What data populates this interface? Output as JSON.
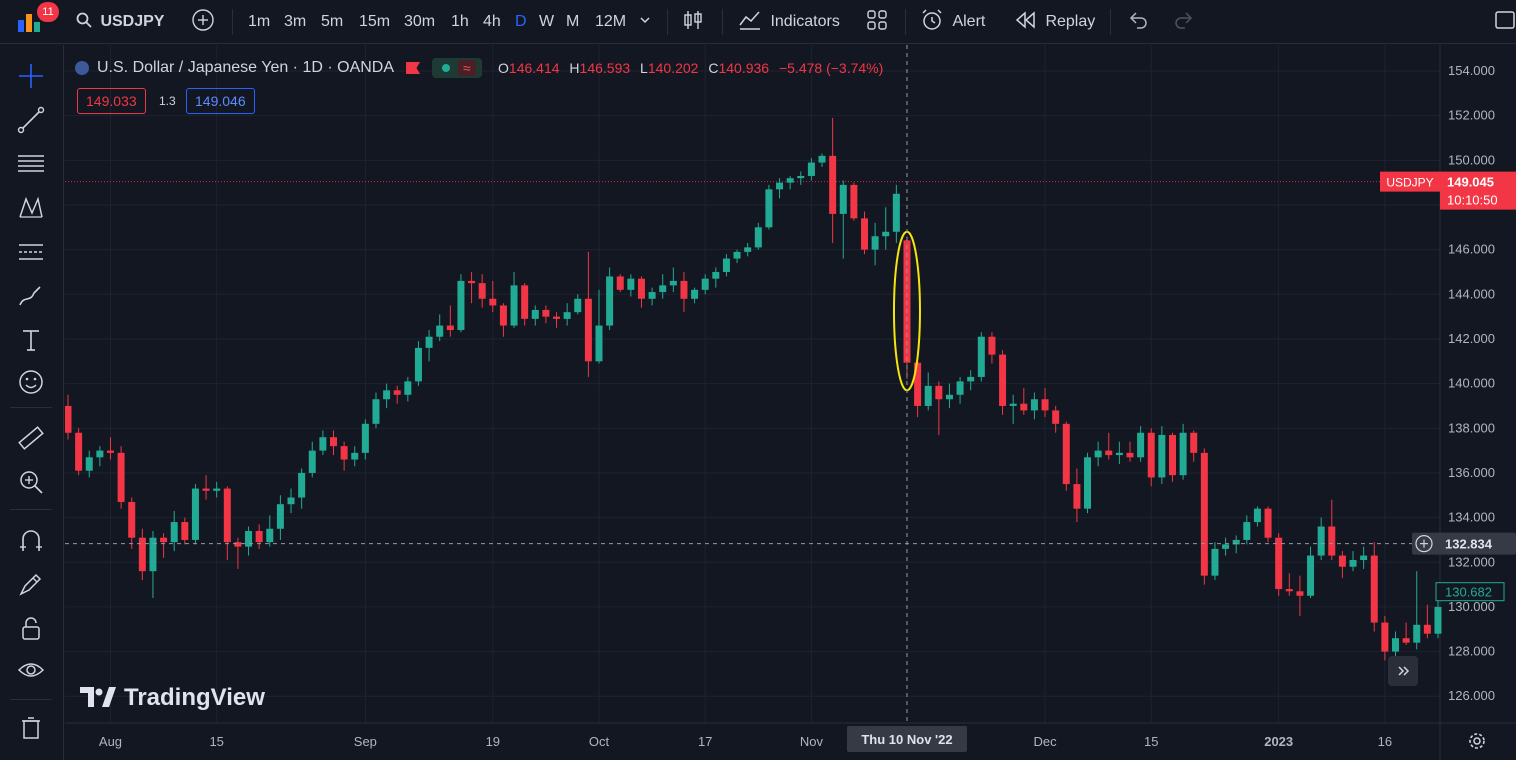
{
  "toolbar": {
    "notification_count": "11",
    "symbol": "USDJPY",
    "intervals": [
      "1m",
      "3m",
      "5m",
      "15m",
      "30m",
      "1h",
      "4h",
      "D",
      "W",
      "M",
      "12M"
    ],
    "active_interval": "D",
    "indicators_label": "Indicators",
    "alert_label": "Alert",
    "replay_label": "Replay",
    "icons": [
      "search-icon",
      "add-symbol-icon",
      "chevron-down-icon",
      "candles-icon",
      "indicators-icon",
      "templates-icon",
      "alert-icon",
      "replay-icon",
      "undo-icon",
      "redo-icon",
      "layout-icon"
    ]
  },
  "left_tools": [
    "crosshair-icon",
    "trend-line-icon",
    "fib-icon",
    "patterns-icon",
    "prediction-icon",
    "brush-icon",
    "text-icon",
    "emoji-icon",
    "ruler-icon",
    "zoom-in-icon",
    "magnet-icon",
    "lock-drawings-icon",
    "unlock-icon",
    "eye-icon",
    "trash-icon"
  ],
  "legend": {
    "title": "U.S. Dollar / Japanese Yen · 1D · OANDA",
    "wave": "≈",
    "o_label": "O",
    "o": "146.414",
    "h_label": "H",
    "h": "146.593",
    "l_label": "L",
    "l": "140.202",
    "c_label": "C",
    "c": "140.936",
    "change": "−5.478 (−3.74%)"
  },
  "quote": {
    "sell": "149.033",
    "spread": "1.3",
    "buy": "149.046"
  },
  "price_labels": {
    "symbol_tag": "USDJPY",
    "last_price": "149.045",
    "countdown": "10:10:50",
    "crosshair_price": "132.834",
    "low_marker": "130.682"
  },
  "watermark": "TradingView",
  "colors": {
    "up": "#22ab94",
    "down": "#f23645",
    "background": "#131722",
    "highlight": "#f5e50a"
  },
  "chart_data": {
    "type": "candlestick",
    "symbol": "USDJPY",
    "title": "U.S. Dollar / Japanese Yen · 1D · OANDA",
    "y_range": [
      125,
      155
    ],
    "y_ticks": [
      126,
      128,
      130,
      132,
      134,
      136,
      138,
      140,
      142,
      144,
      146,
      148,
      150,
      152,
      154
    ],
    "y_tick_labels": [
      "126.000",
      "128.000",
      "130.000",
      "132.000",
      "134.000",
      "136.000",
      "138.000",
      "140.000",
      "142.000",
      "144.000",
      "146.000",
      "148.000",
      "150.000",
      "152.000",
      "154.000"
    ],
    "x_labels": [
      {
        "label": "Aug",
        "index": 4
      },
      {
        "label": "15",
        "index": 14
      },
      {
        "label": "Sep",
        "index": 28
      },
      {
        "label": "19",
        "index": 40
      },
      {
        "label": "Oct",
        "index": 50
      },
      {
        "label": "17",
        "index": 60
      },
      {
        "label": "Nov",
        "index": 70
      },
      {
        "label": "Dec",
        "index": 92
      },
      {
        "label": "15",
        "index": 102
      },
      {
        "label": "2023",
        "index": 114
      },
      {
        "label": "16",
        "index": 124
      }
    ],
    "crosshair": {
      "index": 79,
      "date_label": "Thu 10 Nov '22",
      "price": 132.834
    },
    "last_price": 149.045,
    "annotation": {
      "type": "ellipse",
      "index": 79,
      "y_top": 146.8,
      "y_bottom": 139.7
    },
    "candles": [
      {
        "o": 139.0,
        "h": 139.5,
        "l": 137.5,
        "c": 137.8
      },
      {
        "o": 137.8,
        "h": 138.0,
        "l": 135.9,
        "c": 136.1
      },
      {
        "o": 136.1,
        "h": 137.0,
        "l": 135.8,
        "c": 136.7
      },
      {
        "o": 136.7,
        "h": 137.2,
        "l": 136.3,
        "c": 137.0
      },
      {
        "o": 137.0,
        "h": 137.6,
        "l": 136.6,
        "c": 136.9
      },
      {
        "o": 136.9,
        "h": 137.2,
        "l": 134.4,
        "c": 134.7
      },
      {
        "o": 134.7,
        "h": 134.9,
        "l": 132.6,
        "c": 133.1
      },
      {
        "o": 133.1,
        "h": 133.5,
        "l": 131.2,
        "c": 131.6
      },
      {
        "o": 131.6,
        "h": 133.4,
        "l": 130.4,
        "c": 133.1
      },
      {
        "o": 133.1,
        "h": 133.3,
        "l": 132.2,
        "c": 132.9
      },
      {
        "o": 132.9,
        "h": 134.3,
        "l": 132.5,
        "c": 133.8
      },
      {
        "o": 133.8,
        "h": 134.0,
        "l": 132.8,
        "c": 133.0
      },
      {
        "o": 133.0,
        "h": 135.5,
        "l": 132.8,
        "c": 135.3
      },
      {
        "o": 135.3,
        "h": 135.9,
        "l": 134.8,
        "c": 135.2
      },
      {
        "o": 135.2,
        "h": 135.6,
        "l": 134.9,
        "c": 135.3
      },
      {
        "o": 135.3,
        "h": 135.4,
        "l": 132.1,
        "c": 132.9
      },
      {
        "o": 132.9,
        "h": 133.1,
        "l": 131.7,
        "c": 132.7
      },
      {
        "o": 132.7,
        "h": 133.6,
        "l": 132.3,
        "c": 133.4
      },
      {
        "o": 133.4,
        "h": 133.7,
        "l": 132.6,
        "c": 132.9
      },
      {
        "o": 132.9,
        "h": 134.1,
        "l": 132.7,
        "c": 133.5
      },
      {
        "o": 133.5,
        "h": 135.0,
        "l": 133.0,
        "c": 134.6
      },
      {
        "o": 134.6,
        "h": 135.3,
        "l": 134.2,
        "c": 134.9
      },
      {
        "o": 134.9,
        "h": 136.2,
        "l": 134.4,
        "c": 136.0
      },
      {
        "o": 136.0,
        "h": 137.4,
        "l": 135.8,
        "c": 137.0
      },
      {
        "o": 137.0,
        "h": 137.9,
        "l": 136.8,
        "c": 137.6
      },
      {
        "o": 137.6,
        "h": 137.9,
        "l": 136.8,
        "c": 137.2
      },
      {
        "o": 137.2,
        "h": 137.4,
        "l": 136.1,
        "c": 136.6
      },
      {
        "o": 136.6,
        "h": 137.2,
        "l": 136.3,
        "c": 136.9
      },
      {
        "o": 136.9,
        "h": 138.4,
        "l": 136.6,
        "c": 138.2
      },
      {
        "o": 138.2,
        "h": 139.6,
        "l": 138.0,
        "c": 139.3
      },
      {
        "o": 139.3,
        "h": 140.0,
        "l": 138.9,
        "c": 139.7
      },
      {
        "o": 139.7,
        "h": 139.9,
        "l": 139.1,
        "c": 139.5
      },
      {
        "o": 139.5,
        "h": 140.3,
        "l": 139.2,
        "c": 140.1
      },
      {
        "o": 140.1,
        "h": 141.9,
        "l": 139.9,
        "c": 141.6
      },
      {
        "o": 141.6,
        "h": 142.4,
        "l": 141.0,
        "c": 142.1
      },
      {
        "o": 142.1,
        "h": 143.1,
        "l": 141.9,
        "c": 142.6
      },
      {
        "o": 142.6,
        "h": 143.5,
        "l": 142.1,
        "c": 142.4
      },
      {
        "o": 142.4,
        "h": 144.9,
        "l": 142.3,
        "c": 144.6
      },
      {
        "o": 144.6,
        "h": 145.0,
        "l": 143.6,
        "c": 144.5
      },
      {
        "o": 144.5,
        "h": 144.9,
        "l": 143.4,
        "c": 143.8
      },
      {
        "o": 143.8,
        "h": 144.6,
        "l": 143.2,
        "c": 143.5
      },
      {
        "o": 143.5,
        "h": 143.6,
        "l": 142.1,
        "c": 142.6
      },
      {
        "o": 142.6,
        "h": 145.0,
        "l": 142.5,
        "c": 144.4
      },
      {
        "o": 144.4,
        "h": 144.5,
        "l": 142.6,
        "c": 142.9
      },
      {
        "o": 142.9,
        "h": 143.5,
        "l": 142.6,
        "c": 143.3
      },
      {
        "o": 143.3,
        "h": 143.5,
        "l": 142.7,
        "c": 143.0
      },
      {
        "o": 143.0,
        "h": 143.2,
        "l": 142.5,
        "c": 142.9
      },
      {
        "o": 142.9,
        "h": 143.6,
        "l": 142.6,
        "c": 143.2
      },
      {
        "o": 143.2,
        "h": 144.0,
        "l": 143.1,
        "c": 143.8
      },
      {
        "o": 143.8,
        "h": 145.9,
        "l": 140.3,
        "c": 141.0
      },
      {
        "o": 141.0,
        "h": 144.2,
        "l": 140.9,
        "c": 142.6
      },
      {
        "o": 142.6,
        "h": 145.2,
        "l": 142.4,
        "c": 144.8
      },
      {
        "o": 144.8,
        "h": 144.9,
        "l": 144.1,
        "c": 144.2
      },
      {
        "o": 144.2,
        "h": 144.9,
        "l": 143.9,
        "c": 144.7
      },
      {
        "o": 144.7,
        "h": 144.8,
        "l": 143.4,
        "c": 143.8
      },
      {
        "o": 143.8,
        "h": 144.3,
        "l": 143.5,
        "c": 144.1
      },
      {
        "o": 144.1,
        "h": 144.9,
        "l": 143.8,
        "c": 144.4
      },
      {
        "o": 144.4,
        "h": 145.2,
        "l": 144.1,
        "c": 144.6
      },
      {
        "o": 144.6,
        "h": 145.0,
        "l": 143.2,
        "c": 143.8
      },
      {
        "o": 143.8,
        "h": 144.3,
        "l": 143.6,
        "c": 144.2
      },
      {
        "o": 144.2,
        "h": 144.9,
        "l": 144.0,
        "c": 144.7
      },
      {
        "o": 144.7,
        "h": 145.2,
        "l": 144.3,
        "c": 145.0
      },
      {
        "o": 145.0,
        "h": 145.8,
        "l": 144.8,
        "c": 145.6
      },
      {
        "o": 145.6,
        "h": 146.0,
        "l": 145.4,
        "c": 145.9
      },
      {
        "o": 145.9,
        "h": 146.3,
        "l": 145.7,
        "c": 146.1
      },
      {
        "o": 146.1,
        "h": 147.2,
        "l": 146.0,
        "c": 147.0
      },
      {
        "o": 147.0,
        "h": 148.9,
        "l": 146.9,
        "c": 148.7
      },
      {
        "o": 148.7,
        "h": 149.2,
        "l": 148.3,
        "c": 149.0
      },
      {
        "o": 149.0,
        "h": 149.3,
        "l": 148.7,
        "c": 149.2
      },
      {
        "o": 149.2,
        "h": 149.5,
        "l": 148.9,
        "c": 149.3
      },
      {
        "o": 149.3,
        "h": 150.1,
        "l": 149.1,
        "c": 149.9
      },
      {
        "o": 149.9,
        "h": 150.3,
        "l": 149.7,
        "c": 150.2
      },
      {
        "o": 150.2,
        "h": 151.9,
        "l": 146.3,
        "c": 147.6
      },
      {
        "o": 147.6,
        "h": 149.1,
        "l": 145.6,
        "c": 148.9
      },
      {
        "o": 148.9,
        "h": 149.0,
        "l": 147.3,
        "c": 147.4
      },
      {
        "o": 147.4,
        "h": 147.7,
        "l": 145.8,
        "c": 146.0
      },
      {
        "o": 146.0,
        "h": 147.2,
        "l": 145.3,
        "c": 146.6
      },
      {
        "o": 146.6,
        "h": 147.9,
        "l": 146.0,
        "c": 146.8
      },
      {
        "o": 146.8,
        "h": 148.9,
        "l": 146.3,
        "c": 148.5
      },
      {
        "o": 146.414,
        "h": 146.593,
        "l": 140.202,
        "c": 140.936
      }
    ],
    "candles_after": [
      {
        "o": 140.936,
        "h": 141.2,
        "l": 138.5,
        "c": 139.0
      },
      {
        "o": 139.0,
        "h": 140.5,
        "l": 138.8,
        "c": 139.9
      },
      {
        "o": 139.9,
        "h": 140.1,
        "l": 137.7,
        "c": 139.3
      },
      {
        "o": 139.3,
        "h": 140.0,
        "l": 138.9,
        "c": 139.5
      },
      {
        "o": 139.5,
        "h": 140.3,
        "l": 139.1,
        "c": 140.1
      },
      {
        "o": 140.1,
        "h": 140.6,
        "l": 139.7,
        "c": 140.3
      },
      {
        "o": 140.3,
        "h": 142.3,
        "l": 140.1,
        "c": 142.1
      },
      {
        "o": 142.1,
        "h": 142.3,
        "l": 140.9,
        "c": 141.3
      },
      {
        "o": 141.3,
        "h": 141.5,
        "l": 138.6,
        "c": 139.0
      },
      {
        "o": 139.0,
        "h": 139.5,
        "l": 138.2,
        "c": 139.1
      },
      {
        "o": 139.1,
        "h": 139.8,
        "l": 138.6,
        "c": 138.8
      },
      {
        "o": 138.8,
        "h": 139.6,
        "l": 138.4,
        "c": 139.3
      },
      {
        "o": 139.3,
        "h": 139.8,
        "l": 138.5,
        "c": 138.8
      },
      {
        "o": 138.8,
        "h": 139.0,
        "l": 137.8,
        "c": 138.2
      },
      {
        "o": 138.2,
        "h": 138.3,
        "l": 135.2,
        "c": 135.5
      },
      {
        "o": 135.5,
        "h": 136.2,
        "l": 133.8,
        "c": 134.4
      },
      {
        "o": 134.4,
        "h": 136.9,
        "l": 134.2,
        "c": 136.7
      },
      {
        "o": 136.7,
        "h": 137.4,
        "l": 136.3,
        "c": 137.0
      },
      {
        "o": 137.0,
        "h": 137.8,
        "l": 136.6,
        "c": 136.8
      },
      {
        "o": 136.8,
        "h": 137.4,
        "l": 136.4,
        "c": 136.9
      },
      {
        "o": 136.9,
        "h": 137.4,
        "l": 136.5,
        "c": 136.7
      },
      {
        "o": 136.7,
        "h": 138.1,
        "l": 136.5,
        "c": 137.8
      },
      {
        "o": 137.8,
        "h": 138.0,
        "l": 135.4,
        "c": 135.8
      },
      {
        "o": 135.8,
        "h": 138.1,
        "l": 135.5,
        "c": 137.7
      },
      {
        "o": 137.7,
        "h": 137.8,
        "l": 135.6,
        "c": 135.9
      },
      {
        "o": 135.9,
        "h": 138.2,
        "l": 135.7,
        "c": 137.8
      },
      {
        "o": 137.8,
        "h": 137.9,
        "l": 136.5,
        "c": 136.9
      },
      {
        "o": 136.9,
        "h": 137.1,
        "l": 131.0,
        "c": 131.4
      },
      {
        "o": 131.4,
        "h": 132.9,
        "l": 131.2,
        "c": 132.6
      },
      {
        "o": 132.6,
        "h": 133.1,
        "l": 132.3,
        "c": 132.8
      },
      {
        "o": 132.8,
        "h": 133.2,
        "l": 132.4,
        "c": 133.0
      },
      {
        "o": 133.0,
        "h": 134.1,
        "l": 132.8,
        "c": 133.8
      },
      {
        "o": 133.8,
        "h": 134.5,
        "l": 133.6,
        "c": 134.4
      },
      {
        "o": 134.4,
        "h": 134.5,
        "l": 132.9,
        "c": 133.1
      },
      {
        "o": 133.1,
        "h": 133.3,
        "l": 130.5,
        "c": 130.8
      },
      {
        "o": 130.8,
        "h": 131.5,
        "l": 130.5,
        "c": 130.7
      },
      {
        "o": 130.7,
        "h": 131.4,
        "l": 129.6,
        "c": 130.5
      },
      {
        "o": 130.5,
        "h": 132.7,
        "l": 130.4,
        "c": 132.3
      },
      {
        "o": 132.3,
        "h": 134.0,
        "l": 132.1,
        "c": 133.6
      },
      {
        "o": 133.6,
        "h": 134.8,
        "l": 132.1,
        "c": 132.3
      },
      {
        "o": 132.3,
        "h": 132.5,
        "l": 131.3,
        "c": 131.8
      },
      {
        "o": 131.8,
        "h": 132.5,
        "l": 131.6,
        "c": 132.1
      },
      {
        "o": 132.1,
        "h": 132.7,
        "l": 131.7,
        "c": 132.3
      },
      {
        "o": 132.3,
        "h": 132.9,
        "l": 128.9,
        "c": 129.3
      },
      {
        "o": 129.3,
        "h": 129.6,
        "l": 127.6,
        "c": 128.0
      },
      {
        "o": 128.0,
        "h": 128.9,
        "l": 127.8,
        "c": 128.6
      },
      {
        "o": 128.6,
        "h": 129.3,
        "l": 128.3,
        "c": 128.4
      },
      {
        "o": 128.4,
        "h": 131.6,
        "l": 128.1,
        "c": 129.2
      },
      {
        "o": 129.2,
        "h": 130.1,
        "l": 128.6,
        "c": 128.8
      },
      {
        "o": 128.8,
        "h": 130.6,
        "l": 128.6,
        "c": 130.0
      }
    ]
  }
}
